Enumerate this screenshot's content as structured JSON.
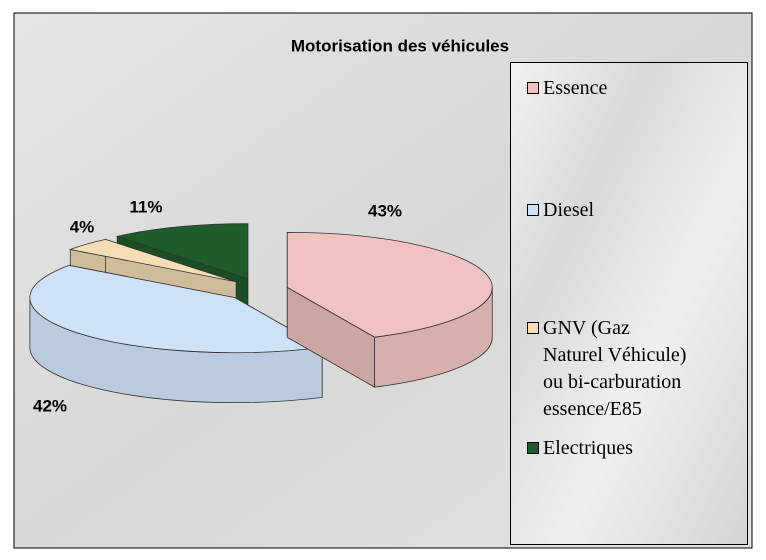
{
  "chart_data": {
    "type": "pie",
    "title": "Motorisation des véhicules",
    "categories": [
      "Essence",
      "Diesel",
      "GNV (Gaz Naturel Véhicule) ou bi-carburation essence/E85",
      "Electriques"
    ],
    "values": [
      43,
      42,
      4,
      11
    ],
    "value_labels": [
      "43%",
      "42%",
      "4%",
      "11%"
    ],
    "colors": [
      "#f0c2c2",
      "#cfe1f7",
      "#f5ddb6",
      "#1f5c2c"
    ],
    "legend": "right"
  }
}
